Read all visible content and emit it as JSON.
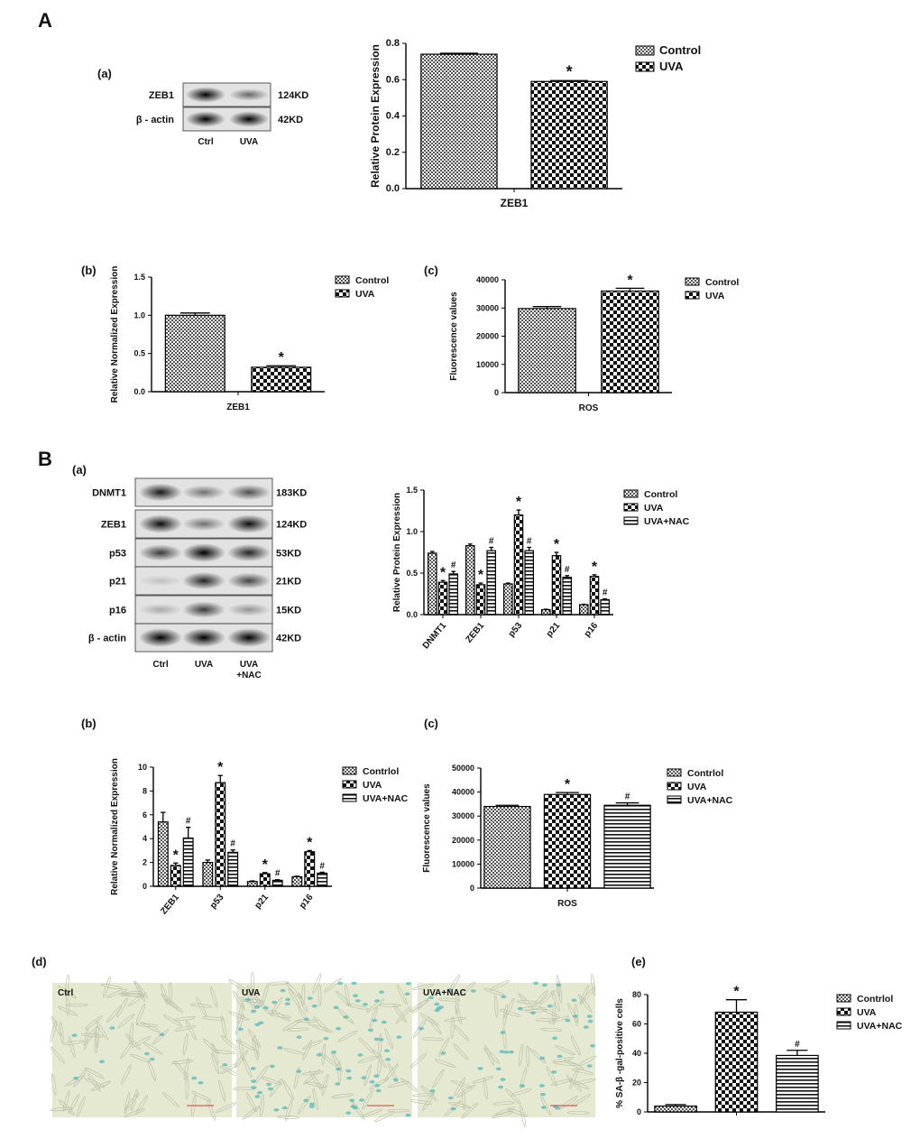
{
  "panel_labels": {
    "A": "A",
    "B": "B",
    "Aa": "(a)",
    "Ab": "(b)",
    "Ac": "(c)",
    "Ba": "(a)",
    "Bb": "(b)",
    "Bc": "(c)",
    "Bd": "(d)",
    "Be": "(e)"
  },
  "blot_A": {
    "rows": [
      {
        "protein": "ZEB1",
        "size": "124KD"
      },
      {
        "protein": "β - actin",
        "size": "42KD"
      }
    ],
    "lanes": [
      "Ctrl",
      "UVA"
    ]
  },
  "blot_B": {
    "rows": [
      {
        "protein": "DNMT1",
        "size": "183KD"
      },
      {
        "protein": "ZEB1",
        "size": "124KD"
      },
      {
        "protein": "p53",
        "size": "53KD"
      },
      {
        "protein": "p21",
        "size": "21KD"
      },
      {
        "protein": "p16",
        "size": "15KD"
      },
      {
        "protein": "β - actin",
        "size": "42KD"
      }
    ],
    "lanes": [
      "Ctrl",
      "UVA",
      "UVA\n+NAC"
    ]
  },
  "micrographs": {
    "labels": [
      "Ctrl",
      "UVA",
      "UVA+NAC"
    ],
    "stain_color": "#4fb3b8",
    "background": "#e6e9d2"
  },
  "pattern_colors": {
    "fg": "#111111",
    "bg": "#ffffff"
  },
  "chart_data": [
    {
      "id": "A-main",
      "type": "bar",
      "ylabel": "Relative Protein Expression",
      "ylim": [
        0,
        0.8
      ],
      "yticks": [
        0.0,
        0.2,
        0.4,
        0.6,
        0.8
      ],
      "tick_format": "1",
      "categories": [
        "ZEB1"
      ],
      "series": [
        {
          "name": "Control",
          "pattern": "fine-check",
          "values": [
            0.74
          ],
          "errors": [
            0.005
          ],
          "marks": [
            ""
          ]
        },
        {
          "name": "UVA",
          "pattern": "checker",
          "values": [
            0.59
          ],
          "errors": [
            0.005
          ],
          "marks": [
            "*"
          ]
        }
      ],
      "legend": "right"
    },
    {
      "id": "A-b",
      "type": "bar",
      "ylabel": "Relative Normalized Expression",
      "ylim": [
        0,
        1.5
      ],
      "yticks": [
        0.0,
        0.5,
        1.0,
        1.5
      ],
      "tick_format": "1",
      "categories": [
        "ZEB1"
      ],
      "series": [
        {
          "name": "Control",
          "pattern": "fine-check",
          "values": [
            1.0
          ],
          "errors": [
            0.03
          ],
          "marks": [
            ""
          ]
        },
        {
          "name": "UVA",
          "pattern": "checker",
          "values": [
            0.32
          ],
          "errors": [
            0.02
          ],
          "marks": [
            "*"
          ]
        }
      ],
      "legend": "right"
    },
    {
      "id": "A-c",
      "type": "bar",
      "ylabel": "Fluorescence values",
      "ylim": [
        0,
        40000
      ],
      "yticks": [
        0,
        10000,
        20000,
        30000,
        40000
      ],
      "tick_format": "0",
      "categories": [
        "ROS"
      ],
      "series": [
        {
          "name": "Control",
          "pattern": "fine-check",
          "values": [
            29800
          ],
          "errors": [
            700
          ],
          "marks": [
            ""
          ]
        },
        {
          "name": "UVA",
          "pattern": "checker",
          "values": [
            36000
          ],
          "errors": [
            1000
          ],
          "marks": [
            "*"
          ]
        }
      ],
      "legend": "right"
    },
    {
      "id": "B-a",
      "type": "bar",
      "ylabel": "Relative Protein Expression",
      "ylim": [
        0,
        1.5
      ],
      "yticks": [
        0.0,
        0.5,
        1.0,
        1.5
      ],
      "tick_format": "1",
      "categories": [
        "DNMT1",
        "ZEB1",
        "p53",
        "p21",
        "p16"
      ],
      "series": [
        {
          "name": "Control",
          "pattern": "fine-check",
          "values": [
            0.74,
            0.83,
            0.37,
            0.06,
            0.12
          ],
          "errors": [
            0.02,
            0.02,
            0.01,
            0.005,
            0.005
          ],
          "marks": [
            "",
            "",
            "",
            "",
            ""
          ]
        },
        {
          "name": "UVA",
          "pattern": "checker",
          "values": [
            0.39,
            0.36,
            1.2,
            0.71,
            0.46
          ],
          "errors": [
            0.02,
            0.02,
            0.06,
            0.04,
            0.02
          ],
          "marks": [
            "*",
            "*",
            "*",
            "*",
            "*"
          ]
        },
        {
          "name": "UVA+NAC",
          "pattern": "stripes",
          "values": [
            0.49,
            0.77,
            0.77,
            0.45,
            0.18
          ],
          "errors": [
            0.03,
            0.04,
            0.04,
            0.02,
            0.01
          ],
          "marks": [
            "#",
            "#",
            "#",
            "#",
            "#"
          ]
        }
      ],
      "legend": "right"
    },
    {
      "id": "B-b",
      "type": "bar",
      "ylabel": "Relative Normalized Expression",
      "ylim": [
        0,
        10
      ],
      "yticks": [
        0,
        2,
        4,
        6,
        8,
        10
      ],
      "tick_format": "0",
      "categories": [
        "ZEB1",
        "p53",
        "p21",
        "p16"
      ],
      "series": [
        {
          "name": "Contrlol",
          "pattern": "fine-check",
          "values": [
            5.4,
            2.0,
            0.4,
            0.8
          ],
          "errors": [
            0.8,
            0.2,
            0.05,
            0.05
          ],
          "marks": [
            "",
            "",
            "",
            ""
          ]
        },
        {
          "name": "UVA",
          "pattern": "checker",
          "values": [
            1.75,
            8.7,
            1.05,
            2.9
          ],
          "errors": [
            0.2,
            0.6,
            0.1,
            0.1
          ],
          "marks": [
            "*",
            "*",
            "*",
            "*"
          ]
        },
        {
          "name": "UVA+NAC",
          "pattern": "stripes",
          "values": [
            4.05,
            2.85,
            0.5,
            1.1
          ],
          "errors": [
            0.9,
            0.2,
            0.05,
            0.08
          ],
          "marks": [
            "#",
            "#",
            "#",
            "#"
          ]
        }
      ],
      "legend": "right"
    },
    {
      "id": "B-c",
      "type": "bar",
      "ylabel": "Fluorescence values",
      "ylim": [
        0,
        50000
      ],
      "yticks": [
        0,
        10000,
        20000,
        30000,
        40000,
        50000
      ],
      "tick_format": "0",
      "categories": [
        "ROS"
      ],
      "series": [
        {
          "name": "Contrlol",
          "pattern": "fine-check",
          "values": [
            34000
          ],
          "errors": [
            500
          ],
          "marks": [
            ""
          ]
        },
        {
          "name": "UVA",
          "pattern": "checker",
          "values": [
            39000
          ],
          "errors": [
            800
          ],
          "marks": [
            "*"
          ]
        },
        {
          "name": "UVA+NAC",
          "pattern": "stripes",
          "values": [
            34500
          ],
          "errors": [
            1000
          ],
          "marks": [
            "#"
          ]
        }
      ],
      "legend": "right"
    },
    {
      "id": "B-e",
      "type": "bar",
      "ylabel": "% SA-β -gal-positive cells",
      "ylim": [
        0,
        80
      ],
      "yticks": [
        0,
        20,
        40,
        60,
        80
      ],
      "tick_format": "0",
      "categories": [
        ""
      ],
      "series": [
        {
          "name": "Contrlol",
          "pattern": "fine-check",
          "values": [
            4
          ],
          "errors": [
            1
          ],
          "marks": [
            ""
          ]
        },
        {
          "name": "UVA",
          "pattern": "checker",
          "values": [
            68
          ],
          "errors": [
            8.5
          ],
          "marks": [
            "*"
          ]
        },
        {
          "name": "UVA+NAC",
          "pattern": "stripes",
          "values": [
            38.5
          ],
          "errors": [
            3.5
          ],
          "marks": [
            "#"
          ]
        }
      ],
      "legend": "right"
    }
  ]
}
